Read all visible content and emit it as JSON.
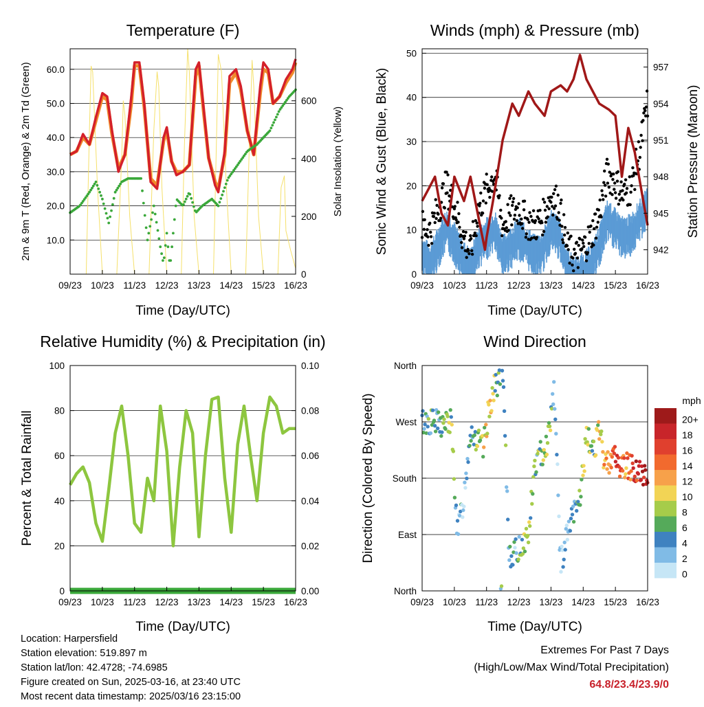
{
  "colors": {
    "temp2m": "#d4202a",
    "temp9m": "#f08a2b",
    "dewpoint": "#3aa83a",
    "solar": "#f5e06a",
    "gust": "#000000",
    "wind": "#5b9bd5",
    "pressure": "#a01818",
    "humidity": "#8dc63f",
    "precip": "#3aa83a"
  },
  "x_ticks": [
    "09/23",
    "10/23",
    "11/23",
    "12/23",
    "13/23",
    "14/23",
    "15/23",
    "16/23"
  ],
  "charts": [
    {
      "id": "temperature",
      "type": "line",
      "title": "Temperature (F)",
      "xlabel": "Time (Day/UTC)",
      "ylabel": "2m & 9m T (Red, Orange) & 2m Td (Green)",
      "y2label": "Solar Insolation (Yellow)",
      "ylim": [
        0,
        66
      ],
      "y_ticks": [
        "10.0",
        "20.0",
        "30.0",
        "40.0",
        "50.0",
        "60.0"
      ],
      "y2lim": [
        0,
        780
      ],
      "y2_ticks": [
        "0",
        "200",
        "400",
        "600"
      ],
      "series": [
        {
          "key": "t2m",
          "x": [
            9.0,
            9.2,
            9.4,
            9.6,
            9.8,
            10.0,
            10.15,
            10.3,
            10.5,
            10.7,
            10.9,
            11.0,
            11.15,
            11.3,
            11.5,
            11.7,
            11.9,
            12.0,
            12.15,
            12.3,
            12.5,
            12.7,
            12.9,
            13.0,
            13.15,
            13.3,
            13.5,
            13.6,
            13.8,
            13.95,
            14.15,
            14.3,
            14.5,
            14.7,
            14.9,
            15.0,
            15.15,
            15.3,
            15.5,
            15.7,
            15.9,
            16.0
          ],
          "values": [
            35,
            36,
            41,
            38,
            46,
            53,
            52,
            42,
            30,
            35,
            52,
            62,
            62,
            50,
            27,
            25,
            40,
            43,
            33,
            29,
            30,
            32,
            60,
            62,
            48,
            34,
            26,
            24,
            36,
            58,
            60,
            55,
            42,
            35,
            55,
            62,
            60,
            50,
            52,
            57,
            60,
            63
          ]
        },
        {
          "key": "t9m",
          "x": [
            9.0,
            9.2,
            9.4,
            9.6,
            9.8,
            10.0,
            10.15,
            10.3,
            10.5,
            10.7,
            10.9,
            11.0,
            11.15,
            11.3,
            11.5,
            11.7,
            11.9,
            12.0,
            12.15,
            12.3,
            12.5,
            12.7,
            12.9,
            13.0,
            13.15,
            13.3,
            13.5,
            13.6,
            13.8,
            13.95,
            14.15,
            14.3,
            14.5,
            14.7,
            14.9,
            15.0,
            15.15,
            15.3,
            15.5,
            15.7,
            15.9,
            16.0
          ],
          "values": [
            35,
            36,
            40,
            38,
            45,
            52,
            51,
            41,
            31,
            35,
            50,
            61,
            61,
            49,
            28,
            26,
            39,
            42,
            33,
            30,
            30,
            32,
            58,
            61,
            47,
            34,
            27,
            25,
            35,
            56,
            59,
            54,
            42,
            35,
            53,
            60,
            59,
            50,
            52,
            56,
            59,
            62
          ]
        },
        {
          "key": "td2m",
          "x": [
            9.0,
            9.3,
            9.6,
            9.8,
            10.0,
            10.2,
            10.4,
            10.6,
            10.8,
            11.0,
            11.2,
            11.4,
            11.6,
            11.8,
            11.9,
            12.0,
            12.1,
            12.3,
            12.5,
            12.7,
            12.9,
            13.1,
            13.4,
            13.6,
            13.9,
            14.2,
            14.5,
            14.8,
            15.2,
            15.5,
            15.8,
            16.0
          ],
          "values": [
            18,
            20,
            24,
            27,
            22,
            15,
            24,
            27,
            28,
            28,
            28,
            10,
            20,
            8,
            3,
            12,
            2,
            22,
            20,
            24,
            18,
            20,
            22,
            20,
            28,
            32,
            36,
            38,
            42,
            48,
            52,
            54
          ]
        },
        {
          "key": "solar",
          "x": [
            9.0,
            9.5,
            9.6,
            9.65,
            9.7,
            9.85,
            10.0,
            10.45,
            10.6,
            10.65,
            10.7,
            10.85,
            11.0,
            11.45,
            11.6,
            11.7,
            11.75,
            11.85,
            12.0,
            12.45,
            12.55,
            12.65,
            12.7,
            12.85,
            13.0,
            13.45,
            13.55,
            13.6,
            13.7,
            13.85,
            14.0,
            14.45,
            14.55,
            14.65,
            14.7,
            14.85,
            15.0,
            15.45,
            15.55,
            15.65,
            15.7,
            15.85,
            16.0
          ],
          "values": [
            0,
            0,
            500,
            720,
            700,
            300,
            0,
            0,
            400,
            600,
            550,
            200,
            0,
            0,
            500,
            700,
            650,
            300,
            0,
            0,
            450,
            780,
            700,
            200,
            0,
            0,
            500,
            760,
            700,
            300,
            0,
            0,
            400,
            740,
            650,
            200,
            0,
            0,
            300,
            340,
            150,
            80,
            20
          ]
        }
      ]
    },
    {
      "id": "winds",
      "type": "scatter",
      "title": "Winds (mph) & Pressure (mb)",
      "xlabel": "Time (Day/UTC)",
      "ylabel": "Sonic Wind & Gust (Blue, Black)",
      "y2label": "Station Pressure (Maroon)",
      "ylim": [
        0,
        51
      ],
      "y_ticks": [
        "0",
        "10",
        "20",
        "30",
        "40",
        "50"
      ],
      "y2lim": [
        940.0,
        958.5
      ],
      "y2_ticks": [
        "942",
        "945",
        "948",
        "951",
        "954",
        "957"
      ],
      "series": [
        {
          "key": "wind",
          "x": [
            9.0,
            9.25,
            9.5,
            9.75,
            10.0,
            10.25,
            10.5,
            10.75,
            11.0,
            11.25,
            11.5,
            11.75,
            12.0,
            12.25,
            12.5,
            12.75,
            13.0,
            13.25,
            13.5,
            13.75,
            14.0,
            14.25,
            14.5,
            14.75,
            15.0,
            15.25,
            15.5,
            15.75,
            16.0
          ],
          "values": [
            6,
            4,
            8,
            12,
            9,
            5,
            3,
            8,
            10,
            12,
            6,
            8,
            10,
            8,
            6,
            7,
            12,
            10,
            3,
            1,
            2,
            4,
            8,
            14,
            12,
            10,
            11,
            14,
            17
          ]
        },
        {
          "key": "gust",
          "x": [
            9.0,
            9.25,
            9.5,
            9.75,
            10.0,
            10.25,
            10.5,
            10.75,
            11.0,
            11.25,
            11.5,
            11.75,
            12.0,
            12.25,
            12.5,
            12.75,
            13.0,
            13.25,
            13.5,
            13.75,
            14.0,
            14.25,
            14.5,
            14.75,
            15.0,
            15.25,
            15.5,
            15.75,
            16.0
          ],
          "values": [
            10,
            9,
            14,
            19,
            15,
            8,
            4,
            14,
            18,
            22,
            10,
            13,
            14,
            11,
            10,
            12,
            17,
            15,
            5,
            3,
            5,
            8,
            13,
            22,
            20,
            17,
            19,
            27,
            38
          ]
        },
        {
          "key": "pressure",
          "x": [
            9.0,
            9.2,
            9.4,
            9.6,
            9.8,
            10.0,
            10.3,
            10.5,
            10.8,
            10.95,
            11.0,
            11.2,
            11.5,
            11.8,
            12.0,
            12.3,
            12.5,
            12.8,
            13.0,
            13.3,
            13.5,
            13.7,
            13.9,
            14.1,
            14.3,
            14.5,
            14.8,
            15.0,
            15.2,
            15.4,
            15.6,
            15.8,
            16.0
          ],
          "values": [
            946,
            947,
            948,
            945,
            944,
            948,
            946,
            948,
            944,
            942,
            943,
            946,
            951,
            954,
            953,
            955,
            954,
            953,
            955,
            955.5,
            955,
            956,
            958,
            956,
            955,
            954,
            953.5,
            953,
            948,
            952,
            950,
            947,
            944
          ]
        }
      ]
    },
    {
      "id": "humidity",
      "type": "line",
      "title": "Relative Humidity (%) & Precipitation (in)",
      "xlabel": "Time (Day/UTC)",
      "ylabel": "Percent & Total Rainfall",
      "ylim": [
        0,
        100
      ],
      "y_ticks": [
        "0",
        "20",
        "40",
        "60",
        "80",
        "100"
      ],
      "y2lim": [
        0,
        0.1
      ],
      "y2_ticks": [
        "0.00",
        "0.02",
        "0.04",
        "0.06",
        "0.08",
        "0.10"
      ],
      "series": [
        {
          "key": "rh",
          "x": [
            9.0,
            9.2,
            9.4,
            9.6,
            9.8,
            10.0,
            10.2,
            10.4,
            10.6,
            10.8,
            11.0,
            11.2,
            11.4,
            11.6,
            11.8,
            12.0,
            12.2,
            12.4,
            12.6,
            12.8,
            13.0,
            13.2,
            13.4,
            13.6,
            13.8,
            14.0,
            14.2,
            14.4,
            14.6,
            14.8,
            15.0,
            15.2,
            15.4,
            15.6,
            15.8,
            16.0
          ],
          "values": [
            47,
            52,
            55,
            48,
            30,
            22,
            45,
            70,
            82,
            60,
            30,
            26,
            50,
            40,
            82,
            62,
            20,
            55,
            80,
            70,
            24,
            60,
            85,
            86,
            50,
            26,
            65,
            82,
            60,
            40,
            70,
            86,
            82,
            70,
            72,
            72
          ]
        },
        {
          "key": "precip",
          "x": [
            9.0,
            16.0
          ],
          "values": [
            0,
            0
          ]
        }
      ]
    },
    {
      "id": "direction",
      "type": "scatter",
      "title": "Wind Direction",
      "xlabel": "Time (Day/UTC)",
      "ylabel": "Direction (Colored By Speed)",
      "y_ticks": [
        "North",
        "East",
        "South",
        "West",
        "North"
      ],
      "legend_title": "mph",
      "legend_labels": [
        "20+",
        "18",
        "16",
        "14",
        "12",
        "10",
        "8",
        "6",
        "4",
        "2",
        "0"
      ],
      "legend_colors": [
        "#9e1a1a",
        "#c8252a",
        "#e0402e",
        "#f26a2e",
        "#f7a14a",
        "#f2d455",
        "#a6cc4a",
        "#55aa5a",
        "#3f82c0",
        "#80bbe6",
        "#c6e6f6"
      ],
      "series": [
        {
          "key": "dir",
          "x": [
            9.0,
            9.3,
            9.6,
            9.9,
            10.1,
            10.3,
            10.5,
            10.7,
            10.9,
            11.1,
            11.3,
            11.5,
            11.7,
            11.9,
            12.1,
            12.3,
            12.5,
            12.7,
            12.9,
            13.1,
            13.3,
            13.5,
            13.7,
            13.9,
            14.1,
            14.3,
            14.5,
            14.7,
            14.9,
            15.1,
            15.3,
            15.5,
            15.7,
            15.9
          ],
          "values": [
            270,
            270,
            265,
            270,
            90,
            150,
            260,
            240,
            225,
            300,
            330,
            350,
            60,
            60,
            75,
            90,
            200,
            220,
            240,
            330,
            40,
            90,
            120,
            150,
            240,
            230,
            250,
            200,
            220,
            200,
            200,
            200,
            190,
            180
          ],
          "speed": [
            4,
            5,
            6,
            8,
            3,
            2,
            5,
            7,
            9,
            10,
            6,
            5,
            4,
            3,
            6,
            8,
            5,
            7,
            9,
            3,
            2,
            1,
            4,
            6,
            8,
            6,
            10,
            12,
            14,
            16,
            12,
            15,
            18,
            18
          ]
        }
      ]
    }
  ],
  "info": {
    "location": "Location: Harpersfield",
    "elevation": "Station elevation: 519.897 m",
    "latlon": "Station lat/lon: 42.4728; -74.6985",
    "created": "Figure created on Sun, 2025-03-16, at 23:40 UTC",
    "recent": "Most recent data timestamp: 2025/03/16 23:15:00"
  },
  "extremes": {
    "title": "Extremes For Past 7 Days",
    "subtitle": "(High/Low/Max Wind/Total Precipitation)",
    "values": "64.8/23.4/23.9/0"
  }
}
